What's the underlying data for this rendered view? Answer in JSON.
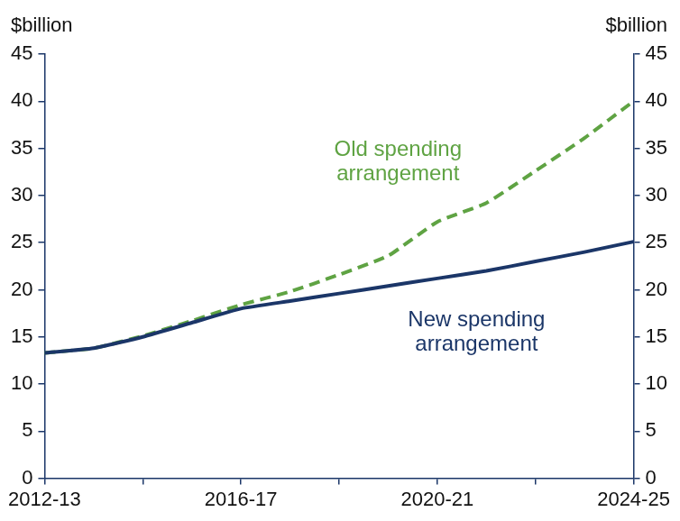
{
  "chart_data": {
    "type": "line",
    "y_label": "$billion",
    "y2_label": "$billion",
    "categories": [
      "2012-13",
      null,
      null,
      null,
      "2016-17",
      null,
      null,
      null,
      "2020-21",
      null,
      null,
      null,
      "2024-25"
    ],
    "series": [
      {
        "name": "Old spending arrangement",
        "color": "#5fa343",
        "line_style": "dashed",
        "values": [
          13.3,
          13.8,
          15.1,
          16.7,
          18.4,
          19.8,
          21.6,
          23.6,
          27.2,
          29.2,
          32.6,
          36.1,
          40.0
        ]
      },
      {
        "name": "New spending arrangement",
        "color": "#1b3668",
        "line_style": "solid",
        "values": [
          13.3,
          13.8,
          15.0,
          16.5,
          18.0,
          18.8,
          19.6,
          20.4,
          21.2,
          22.0,
          23.0,
          24.0,
          25.1
        ]
      }
    ],
    "ylim": [
      0,
      45
    ],
    "yticks": [
      0,
      5,
      10,
      15,
      20,
      25,
      30,
      35,
      40,
      45
    ],
    "y2lim": [
      0,
      45
    ],
    "y2ticks": [
      0,
      5,
      10,
      15,
      20,
      25,
      30,
      35,
      40,
      45
    ],
    "grid": false
  }
}
